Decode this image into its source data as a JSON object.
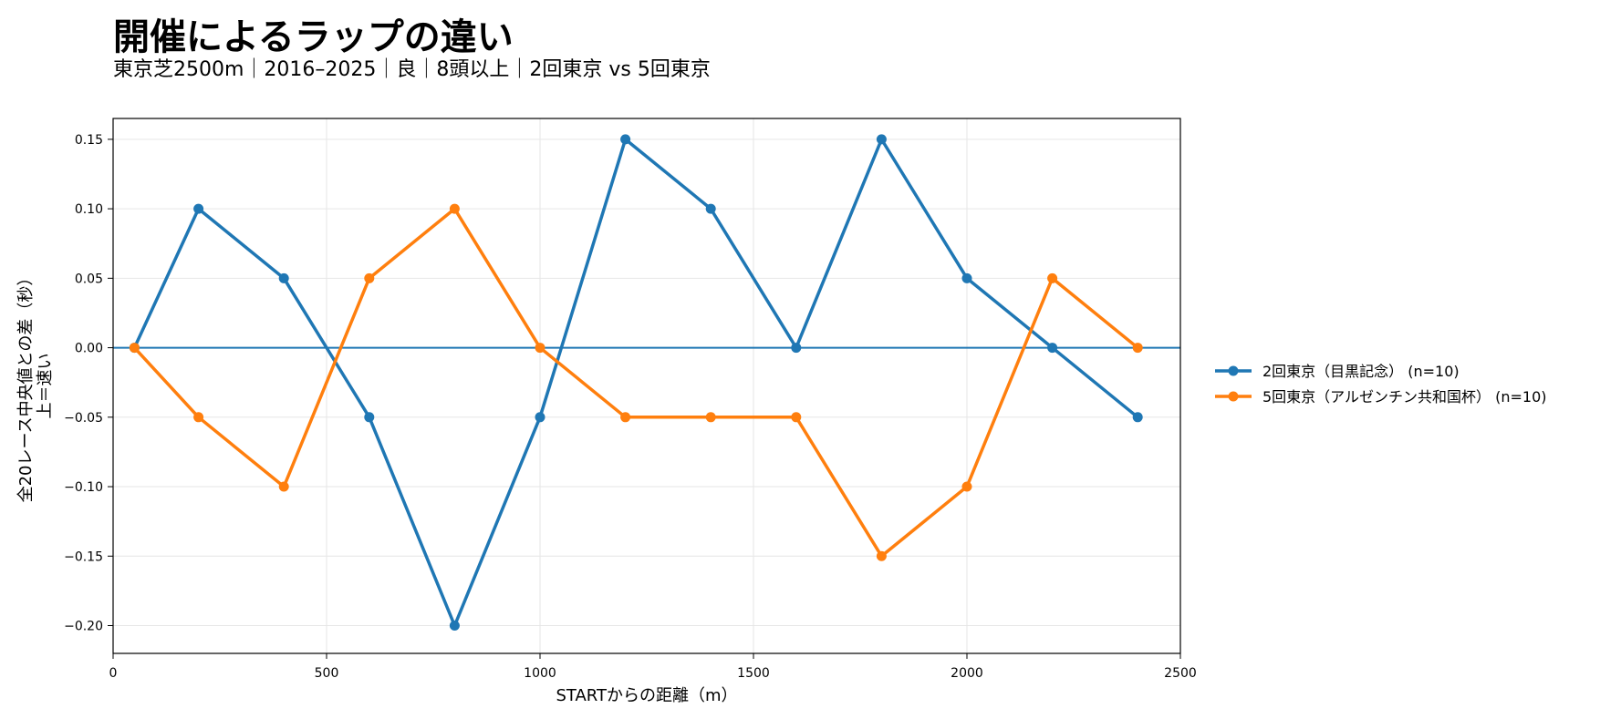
{
  "chart_data": {
    "type": "line",
    "title": "開催によるラップの違い",
    "subtitle": "東京芝2500m｜2016–2025｜良｜8頭以上｜2回東京 vs 5回東京",
    "xlabel": "STARTからの距離（m）",
    "ylabel_lines": [
      "全20レース中央値との差（秒）",
      "上＝速い"
    ],
    "xlim": [
      0,
      2500
    ],
    "ylim": [
      -0.22,
      0.165
    ],
    "x_ticks": [
      0,
      500,
      1000,
      1500,
      2000,
      2500
    ],
    "y_ticks": [
      0.15,
      0.1,
      0.05,
      0.0,
      -0.05,
      -0.1,
      -0.15,
      -0.2
    ],
    "y_tick_labels": [
      "0.15",
      "0.10",
      "0.05",
      "0.00",
      "−0.05",
      "−0.10",
      "−0.15",
      "−0.20"
    ],
    "grid": true,
    "zero_line": true,
    "legend_position": "right",
    "x": [
      50,
      200,
      400,
      600,
      800,
      1000,
      1200,
      1400,
      1600,
      1800,
      2000,
      2200,
      2400
    ],
    "series": [
      {
        "name": "2回東京（目黒記念） (n=10)",
        "color": "#1f77b4",
        "values": [
          0.0,
          0.1,
          0.05,
          -0.05,
          -0.2,
          -0.05,
          0.15,
          0.1,
          0.0,
          0.15,
          0.05,
          0.0,
          -0.05
        ]
      },
      {
        "name": "5回東京（アルゼンチン共和国杯） (n=10)",
        "color": "#ff7f0e",
        "values": [
          0.0,
          -0.05,
          -0.1,
          0.05,
          0.1,
          0.0,
          -0.05,
          -0.05,
          -0.05,
          -0.15,
          -0.1,
          0.05,
          0.0
        ]
      }
    ]
  }
}
